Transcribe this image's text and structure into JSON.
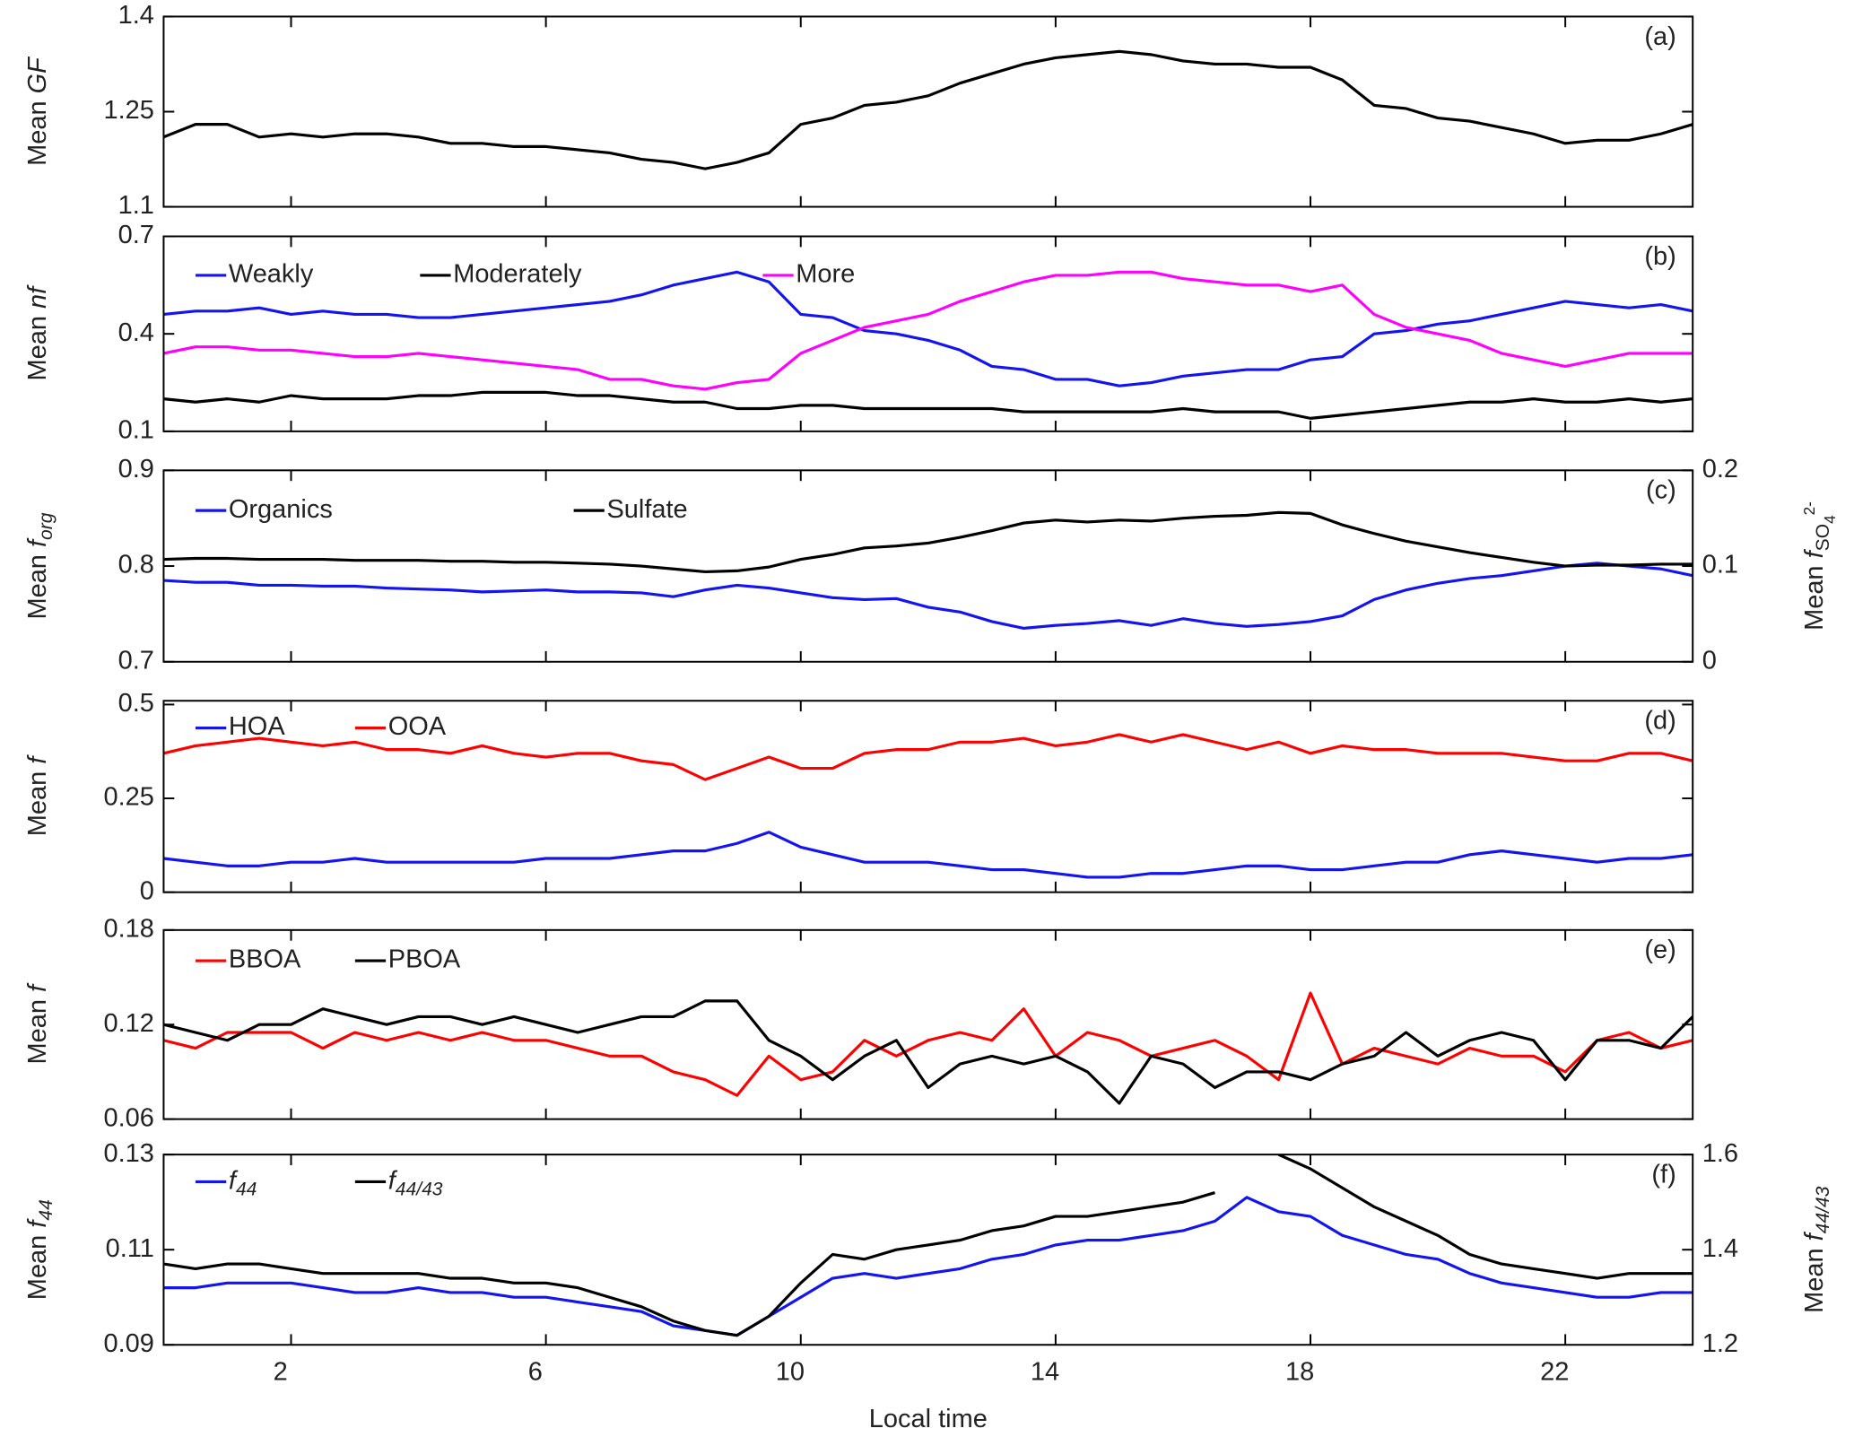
{
  "chart_data": [
    {
      "type": "line",
      "panel_label": "(a)",
      "ylabel": [
        {
          "text": "Mean "
        },
        {
          "text": "GF",
          "style": "italic"
        }
      ],
      "xlim": [
        0,
        24
      ],
      "ylim": [
        1.1,
        1.4
      ],
      "yticks": [
        1.1,
        1.25,
        1.4
      ],
      "x": [
        0,
        0.5,
        1,
        1.5,
        2,
        2.5,
        3,
        3.5,
        4,
        4.5,
        5,
        5.5,
        6,
        6.5,
        7,
        7.5,
        8,
        8.5,
        9,
        9.5,
        10,
        10.5,
        11,
        11.5,
        12,
        12.5,
        13,
        13.5,
        14,
        14.5,
        15,
        15.5,
        16,
        16.5,
        17,
        17.5,
        18,
        18.5,
        19,
        19.5,
        20,
        20.5,
        21,
        21.5,
        22,
        22.5,
        23,
        23.5,
        24
      ],
      "series": [
        {
          "color": "#000000",
          "values": [
            1.21,
            1.23,
            1.23,
            1.21,
            1.215,
            1.21,
            1.215,
            1.215,
            1.21,
            1.2,
            1.2,
            1.195,
            1.195,
            1.19,
            1.185,
            1.175,
            1.17,
            1.16,
            1.17,
            1.185,
            1.23,
            1.24,
            1.26,
            1.265,
            1.275,
            1.295,
            1.31,
            1.325,
            1.335,
            1.34,
            1.345,
            1.34,
            1.33,
            1.325,
            1.325,
            1.32,
            1.32,
            1.3,
            1.26,
            1.255,
            1.24,
            1.235,
            1.225,
            1.215,
            1.2,
            1.205,
            1.205,
            1.215,
            1.23
          ]
        }
      ]
    },
    {
      "type": "line",
      "panel_label": "(b)",
      "ylabel": [
        {
          "text": "Mean "
        },
        {
          "text": "nf",
          "style": "italic"
        }
      ],
      "xlim": [
        0,
        24
      ],
      "ylim": [
        0.1,
        0.7
      ],
      "yticks": [
        0.1,
        0.4,
        0.7
      ],
      "x": [
        0,
        0.5,
        1,
        1.5,
        2,
        2.5,
        3,
        3.5,
        4,
        4.5,
        5,
        5.5,
        6,
        6.5,
        7,
        7.5,
        8,
        8.5,
        9,
        9.5,
        10,
        10.5,
        11,
        11.5,
        12,
        12.5,
        13,
        13.5,
        14,
        14.5,
        15,
        15.5,
        16,
        16.5,
        17,
        17.5,
        18,
        18.5,
        19,
        19.5,
        20,
        20.5,
        21,
        21.5,
        22,
        22.5,
        23,
        23.5,
        24
      ],
      "series": [
        {
          "name": "Weakly",
          "color": "#1414f0",
          "values": [
            0.46,
            0.47,
            0.47,
            0.48,
            0.46,
            0.47,
            0.46,
            0.46,
            0.45,
            0.45,
            0.46,
            0.47,
            0.48,
            0.49,
            0.5,
            0.52,
            0.55,
            0.57,
            0.59,
            0.56,
            0.46,
            0.45,
            0.41,
            0.4,
            0.38,
            0.35,
            0.3,
            0.29,
            0.26,
            0.26,
            0.24,
            0.25,
            0.27,
            0.28,
            0.29,
            0.29,
            0.32,
            0.33,
            0.4,
            0.41,
            0.43,
            0.44,
            0.46,
            0.48,
            0.5,
            0.49,
            0.48,
            0.49,
            0.47
          ]
        },
        {
          "name": "Moderately",
          "color": "#000000",
          "values": [
            0.2,
            0.19,
            0.2,
            0.19,
            0.21,
            0.2,
            0.2,
            0.2,
            0.21,
            0.21,
            0.22,
            0.22,
            0.22,
            0.21,
            0.21,
            0.2,
            0.19,
            0.19,
            0.17,
            0.17,
            0.18,
            0.18,
            0.17,
            0.17,
            0.17,
            0.17,
            0.17,
            0.16,
            0.16,
            0.16,
            0.16,
            0.16,
            0.17,
            0.16,
            0.16,
            0.16,
            0.14,
            0.15,
            0.16,
            0.17,
            0.18,
            0.19,
            0.19,
            0.2,
            0.19,
            0.19,
            0.2,
            0.19,
            0.2
          ]
        },
        {
          "name": "More",
          "color": "#ff00ff",
          "values": [
            0.34,
            0.36,
            0.36,
            0.35,
            0.35,
            0.34,
            0.33,
            0.33,
            0.34,
            0.33,
            0.32,
            0.31,
            0.3,
            0.29,
            0.26,
            0.26,
            0.24,
            0.23,
            0.25,
            0.26,
            0.34,
            0.38,
            0.42,
            0.44,
            0.46,
            0.5,
            0.53,
            0.56,
            0.58,
            0.58,
            0.59,
            0.59,
            0.57,
            0.56,
            0.55,
            0.55,
            0.53,
            0.55,
            0.46,
            0.42,
            0.4,
            0.38,
            0.34,
            0.32,
            0.3,
            0.32,
            0.34,
            0.34,
            0.34
          ]
        }
      ]
    },
    {
      "type": "line",
      "panel_label": "(c)",
      "ylabel": [
        {
          "text": "Mean "
        },
        {
          "text": "f",
          "style": "italic"
        },
        {
          "text": "org",
          "style": "italic-sub"
        }
      ],
      "y2label": [
        {
          "text": "Mean "
        },
        {
          "text": "f",
          "style": "italic"
        },
        {
          "text": "SO",
          "style": "sub"
        },
        {
          "text": "4",
          "style": "sub2"
        },
        {
          "text": "2-",
          "style": "sup2"
        }
      ],
      "xlim": [
        0,
        24
      ],
      "ylim": [
        0.7,
        0.9
      ],
      "yticks": [
        0.7,
        0.8,
        0.9
      ],
      "y2lim": [
        0,
        0.2
      ],
      "y2ticks": [
        0,
        0.1,
        0.2
      ],
      "x": [
        0,
        0.5,
        1,
        1.5,
        2,
        2.5,
        3,
        3.5,
        4,
        4.5,
        5,
        5.5,
        6,
        6.5,
        7,
        7.5,
        8,
        8.5,
        9,
        9.5,
        10,
        10.5,
        11,
        11.5,
        12,
        12.5,
        13,
        13.5,
        14,
        14.5,
        15,
        15.5,
        16,
        16.5,
        17,
        17.5,
        18,
        18.5,
        19,
        19.5,
        20,
        20.5,
        21,
        21.5,
        22,
        22.5,
        23,
        23.5,
        24
      ],
      "series": [
        {
          "name": "Organics",
          "color": "#1414f0",
          "values": [
            0.785,
            0.783,
            0.783,
            0.78,
            0.78,
            0.779,
            0.779,
            0.777,
            0.776,
            0.775,
            0.773,
            0.774,
            0.775,
            0.773,
            0.773,
            0.772,
            0.768,
            0.775,
            0.78,
            0.777,
            0.772,
            0.767,
            0.765,
            0.766,
            0.757,
            0.752,
            0.742,
            0.735,
            0.738,
            0.74,
            0.743,
            0.738,
            0.745,
            0.74,
            0.737,
            0.739,
            0.742,
            0.748,
            0.765,
            0.775,
            0.782,
            0.787,
            0.79,
            0.795,
            0.8,
            0.803,
            0.8,
            0.797,
            0.79
          ]
        },
        {
          "name": "Sulfate",
          "color": "#000000",
          "axis": "y2",
          "values": [
            0.107,
            0.108,
            0.108,
            0.107,
            0.107,
            0.107,
            0.106,
            0.106,
            0.106,
            0.105,
            0.105,
            0.104,
            0.104,
            0.103,
            0.102,
            0.1,
            0.097,
            0.094,
            0.095,
            0.099,
            0.107,
            0.112,
            0.119,
            0.121,
            0.124,
            0.13,
            0.137,
            0.145,
            0.148,
            0.146,
            0.148,
            0.147,
            0.15,
            0.152,
            0.153,
            0.156,
            0.155,
            0.143,
            0.134,
            0.126,
            0.12,
            0.114,
            0.109,
            0.104,
            0.1,
            0.101,
            0.101,
            0.102,
            0.102
          ]
        }
      ]
    },
    {
      "type": "line",
      "panel_label": "(d)",
      "ylabel": [
        {
          "text": "Mean "
        },
        {
          "text": "f",
          "style": "italic"
        }
      ],
      "xlim": [
        0,
        24
      ],
      "ylim": [
        0,
        0.51
      ],
      "yticks": [
        0,
        0.25,
        0.5
      ],
      "x": [
        0,
        0.5,
        1,
        1.5,
        2,
        2.5,
        3,
        3.5,
        4,
        4.5,
        5,
        5.5,
        6,
        6.5,
        7,
        7.5,
        8,
        8.5,
        9,
        9.5,
        10,
        10.5,
        11,
        11.5,
        12,
        12.5,
        13,
        13.5,
        14,
        14.5,
        15,
        15.5,
        16,
        16.5,
        17,
        17.5,
        18,
        18.5,
        19,
        19.5,
        20,
        20.5,
        21,
        21.5,
        22,
        22.5,
        23,
        23.5,
        24
      ],
      "series": [
        {
          "name": "HOA",
          "color": "#1414f0",
          "values": [
            0.09,
            0.08,
            0.07,
            0.07,
            0.08,
            0.08,
            0.09,
            0.08,
            0.08,
            0.08,
            0.08,
            0.08,
            0.09,
            0.09,
            0.09,
            0.1,
            0.11,
            0.11,
            0.13,
            0.16,
            0.12,
            0.1,
            0.08,
            0.08,
            0.08,
            0.07,
            0.06,
            0.06,
            0.05,
            0.04,
            0.04,
            0.05,
            0.05,
            0.06,
            0.07,
            0.07,
            0.06,
            0.06,
            0.07,
            0.08,
            0.08,
            0.1,
            0.11,
            0.1,
            0.09,
            0.08,
            0.09,
            0.09,
            0.1
          ]
        },
        {
          "name": "OOA",
          "color": "#ff0000",
          "values": [
            0.37,
            0.39,
            0.4,
            0.41,
            0.4,
            0.39,
            0.4,
            0.38,
            0.38,
            0.37,
            0.39,
            0.37,
            0.36,
            0.37,
            0.37,
            0.35,
            0.34,
            0.3,
            0.33,
            0.36,
            0.33,
            0.33,
            0.37,
            0.38,
            0.38,
            0.4,
            0.4,
            0.41,
            0.39,
            0.4,
            0.42,
            0.4,
            0.42,
            0.4,
            0.38,
            0.4,
            0.37,
            0.39,
            0.38,
            0.38,
            0.37,
            0.37,
            0.37,
            0.36,
            0.35,
            0.35,
            0.37,
            0.37,
            0.35
          ]
        }
      ]
    },
    {
      "type": "line",
      "panel_label": "(e)",
      "ylabel": [
        {
          "text": "Mean "
        },
        {
          "text": "f",
          "style": "italic"
        }
      ],
      "xlim": [
        0,
        24
      ],
      "ylim": [
        0.06,
        0.18
      ],
      "yticks": [
        0.06,
        0.12,
        0.18
      ],
      "x": [
        0,
        0.5,
        1,
        1.5,
        2,
        2.5,
        3,
        3.5,
        4,
        4.5,
        5,
        5.5,
        6,
        6.5,
        7,
        7.5,
        8,
        8.5,
        9,
        9.5,
        10,
        10.5,
        11,
        11.5,
        12,
        12.5,
        13,
        13.5,
        14,
        14.5,
        15,
        15.5,
        16,
        16.5,
        17,
        17.5,
        18,
        18.5,
        19,
        19.5,
        20,
        20.5,
        21,
        21.5,
        22,
        22.5,
        23,
        23.5,
        24
      ],
      "series": [
        {
          "name": "BBOA",
          "color": "#ff0000",
          "values": [
            0.11,
            0.105,
            0.115,
            0.115,
            0.115,
            0.105,
            0.115,
            0.11,
            0.115,
            0.11,
            0.115,
            0.11,
            0.11,
            0.105,
            0.1,
            0.1,
            0.09,
            0.085,
            0.075,
            0.1,
            0.085,
            0.09,
            0.11,
            0.1,
            0.11,
            0.115,
            0.11,
            0.13,
            0.1,
            0.115,
            0.11,
            0.1,
            0.105,
            0.11,
            0.1,
            0.085,
            0.14,
            0.095,
            0.105,
            0.1,
            0.095,
            0.105,
            0.1,
            0.1,
            0.09,
            0.11,
            0.115,
            0.105,
            0.11
          ]
        },
        {
          "name": "PBOA",
          "color": "#000000",
          "values": [
            0.12,
            0.115,
            0.11,
            0.12,
            0.12,
            0.13,
            0.125,
            0.12,
            0.125,
            0.125,
            0.12,
            0.125,
            0.12,
            0.115,
            0.12,
            0.125,
            0.125,
            0.135,
            0.135,
            0.11,
            0.1,
            0.085,
            0.1,
            0.11,
            0.08,
            0.095,
            0.1,
            0.095,
            0.1,
            0.09,
            0.07,
            0.1,
            0.095,
            0.08,
            0.09,
            0.09,
            0.085,
            0.095,
            0.1,
            0.115,
            0.1,
            0.11,
            0.115,
            0.11,
            0.085,
            0.11,
            0.11,
            0.105,
            0.125
          ]
        }
      ]
    },
    {
      "type": "line",
      "panel_label": "(f)",
      "ylabel": [
        {
          "text": "Mean "
        },
        {
          "text": "f",
          "style": "italic"
        },
        {
          "text": "44",
          "style": "italic-sub"
        }
      ],
      "y2label": [
        {
          "text": "Mean "
        },
        {
          "text": "f",
          "style": "italic"
        },
        {
          "text": "44/43",
          "style": "italic-sub"
        }
      ],
      "xlabel": "Local time",
      "xlim": [
        0,
        24
      ],
      "xticks": [
        2,
        6,
        10,
        14,
        18,
        22
      ],
      "ylim": [
        0.09,
        0.13
      ],
      "yticks": [
        0.09,
        0.11,
        0.13
      ],
      "y2lim": [
        1.2,
        1.6
      ],
      "y2ticks": [
        1.2,
        1.4,
        1.6
      ],
      "x": [
        0,
        0.5,
        1,
        1.5,
        2,
        2.5,
        3,
        3.5,
        4,
        4.5,
        5,
        5.5,
        6,
        6.5,
        7,
        7.5,
        8,
        8.5,
        9,
        9.5,
        10,
        10.5,
        11,
        11.5,
        12,
        12.5,
        13,
        13.5,
        14,
        14.5,
        15,
        15.5,
        16,
        16.5,
        17,
        17.5,
        18,
        18.5,
        19,
        19.5,
        20,
        20.5,
        21,
        21.5,
        22,
        22.5,
        23,
        23.5,
        24
      ],
      "series": [
        {
          "name": [
            {
              "text": "f",
              "style": "italic"
            },
            {
              "text": "44",
              "style": "italic-sub"
            }
          ],
          "color": "#1414f0",
          "values": [
            0.102,
            0.102,
            0.103,
            0.103,
            0.103,
            0.102,
            0.101,
            0.101,
            0.102,
            0.101,
            0.101,
            0.1,
            0.1,
            0.099,
            0.098,
            0.097,
            0.094,
            0.093,
            0.092,
            0.096,
            0.1,
            0.104,
            0.105,
            0.104,
            0.105,
            0.106,
            0.108,
            0.109,
            0.111,
            0.112,
            0.112,
            0.113,
            0.114,
            0.116,
            0.121,
            0.118,
            0.117,
            0.113,
            0.111,
            0.109,
            0.108,
            0.105,
            0.103,
            0.102,
            0.101,
            0.1,
            0.1,
            0.101,
            0.101
          ]
        },
        {
          "name": [
            {
              "text": "f",
              "style": "italic"
            },
            {
              "text": "44/43",
              "style": "italic-sub"
            }
          ],
          "color": "#000000",
          "axis": "y2",
          "values": [
            1.37,
            1.36,
            1.37,
            1.37,
            1.36,
            1.35,
            1.35,
            1.35,
            1.35,
            1.34,
            1.34,
            1.33,
            1.33,
            1.32,
            1.3,
            1.28,
            1.25,
            1.23,
            1.22,
            1.26,
            1.33,
            1.39,
            1.38,
            1.4,
            1.41,
            1.42,
            1.44,
            1.45,
            1.47,
            1.47,
            1.48,
            1.49,
            1.5,
            1.52,
            null,
            1.6,
            1.57,
            1.53,
            1.49,
            1.46,
            1.43,
            1.39,
            1.37,
            1.36,
            1.35,
            1.34,
            1.35,
            1.35,
            1.35
          ]
        }
      ]
    }
  ]
}
